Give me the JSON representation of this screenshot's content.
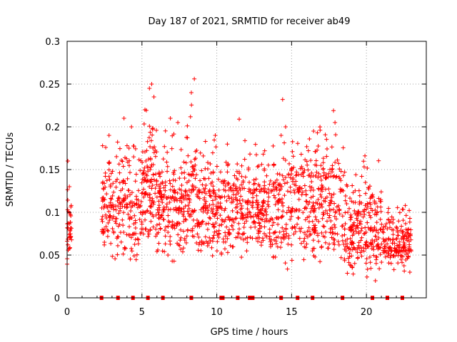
{
  "chart_data": {
    "type": "scatter",
    "title": "Day 187 of 2021, SRMTID for receiver ab49",
    "xlabel": "GPS time / hours",
    "ylabel": "SRMTID / TECUs",
    "xlim": [
      0,
      24
    ],
    "ylim": [
      0,
      0.3
    ],
    "x_ticks": [
      {
        "value": 0,
        "label": "0"
      },
      {
        "value": 5,
        "label": "5"
      },
      {
        "value": 10,
        "label": "10"
      },
      {
        "value": 15,
        "label": "15"
      },
      {
        "value": 20,
        "label": "20"
      }
    ],
    "y_ticks": [
      {
        "value": 0,
        "label": "0"
      },
      {
        "value": 0.05,
        "label": "0.05"
      },
      {
        "value": 0.1,
        "label": "0.1"
      },
      {
        "value": 0.15,
        "label": "0.15"
      },
      {
        "value": 0.2,
        "label": "0.2"
      },
      {
        "value": 0.25,
        "label": "0.25"
      },
      {
        "value": 0.3,
        "label": "0.3"
      }
    ],
    "grid": true,
    "marker": "+",
    "color": "#ff0000",
    "series": [
      {
        "name": "SRMTID",
        "clusters": [
          {
            "x": [
              0.0,
              0.3
            ],
            "y": [
              0.03,
              0.16
            ],
            "count": 40
          },
          {
            "x": [
              2.3,
              5.0
            ],
            "y": [
              0.035,
              0.21
            ],
            "count": 230
          },
          {
            "x": [
              5.0,
              6.0
            ],
            "y": [
              0.05,
              0.25
            ],
            "count": 110
          },
          {
            "x": [
              6.0,
              8.0
            ],
            "y": [
              0.04,
              0.21
            ],
            "count": 190
          },
          {
            "x": [
              8.0,
              8.6
            ],
            "y": [
              0.04,
              0.26
            ],
            "count": 60
          },
          {
            "x": [
              8.6,
              10.5
            ],
            "y": [
              0.04,
              0.2
            ],
            "count": 170
          },
          {
            "x": [
              10.5,
              12.5
            ],
            "y": [
              0.04,
              0.21
            ],
            "count": 170
          },
          {
            "x": [
              12.5,
              14.5
            ],
            "y": [
              0.04,
              0.2
            ],
            "count": 190
          },
          {
            "x": [
              14.5,
              17.5
            ],
            "y": [
              0.03,
              0.23
            ],
            "count": 260
          },
          {
            "x": [
              17.5,
              18.5
            ],
            "y": [
              0.03,
              0.22
            ],
            "count": 80
          },
          {
            "x": [
              18.5,
              21.0
            ],
            "y": [
              0.02,
              0.17
            ],
            "count": 230
          },
          {
            "x": [
              21.0,
              23.0
            ],
            "y": [
              0.03,
              0.12
            ],
            "count": 170
          }
        ],
        "spikes": [
          {
            "x": 0.05,
            "y": 0.16
          },
          {
            "x": 0.15,
            "y": 0.13
          },
          {
            "x": 2.8,
            "y": 0.19
          },
          {
            "x": 3.8,
            "y": 0.21
          },
          {
            "x": 4.3,
            "y": 0.2
          },
          {
            "x": 5.2,
            "y": 0.22
          },
          {
            "x": 5.5,
            "y": 0.245
          },
          {
            "x": 5.65,
            "y": 0.25
          },
          {
            "x": 5.8,
            "y": 0.235
          },
          {
            "x": 6.9,
            "y": 0.21
          },
          {
            "x": 7.4,
            "y": 0.205
          },
          {
            "x": 8.3,
            "y": 0.24
          },
          {
            "x": 8.5,
            "y": 0.256
          },
          {
            "x": 9.9,
            "y": 0.19
          },
          {
            "x": 11.5,
            "y": 0.209
          },
          {
            "x": 13.2,
            "y": 0.172
          },
          {
            "x": 14.3,
            "y": 0.19
          },
          {
            "x": 14.4,
            "y": 0.232
          },
          {
            "x": 14.6,
            "y": 0.2
          },
          {
            "x": 16.6,
            "y": 0.171
          },
          {
            "x": 17.8,
            "y": 0.219
          },
          {
            "x": 17.9,
            "y": 0.205
          },
          {
            "x": 19.9,
            "y": 0.166
          },
          {
            "x": 20.6,
            "y": 0.02
          },
          {
            "x": 22.9,
            "y": 0.03
          }
        ]
      },
      {
        "name": "zero-level markers",
        "points": [
          {
            "x": 2.3,
            "y": 0
          },
          {
            "x": 3.4,
            "y": 0
          },
          {
            "x": 4.4,
            "y": 0
          },
          {
            "x": 5.4,
            "y": 0
          },
          {
            "x": 6.4,
            "y": 0
          },
          {
            "x": 8.3,
            "y": 0
          },
          {
            "x": 10.3,
            "y": 0
          },
          {
            "x": 10.4,
            "y": 0
          },
          {
            "x": 11.4,
            "y": 0
          },
          {
            "x": 12.2,
            "y": 0
          },
          {
            "x": 12.4,
            "y": 0
          },
          {
            "x": 14.3,
            "y": 0
          },
          {
            "x": 15.4,
            "y": 0
          },
          {
            "x": 16.4,
            "y": 0
          },
          {
            "x": 18.4,
            "y": 0
          },
          {
            "x": 20.4,
            "y": 0
          },
          {
            "x": 21.4,
            "y": 0
          },
          {
            "x": 22.4,
            "y": 0
          }
        ]
      }
    ]
  }
}
